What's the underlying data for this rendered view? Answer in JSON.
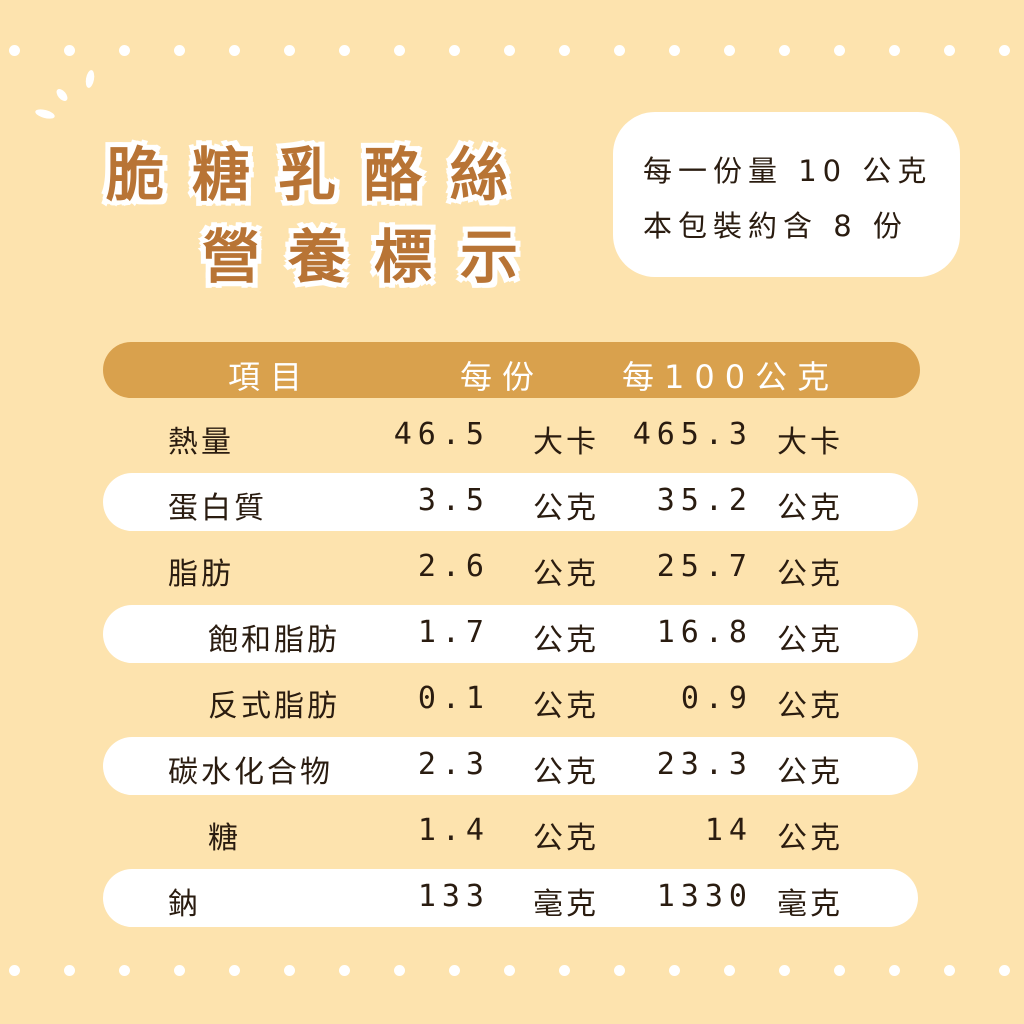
{
  "title": {
    "line1": "脆糖乳酪絲",
    "line2": "營養標示"
  },
  "serving_info": {
    "serving_size": "每一份量  10 公克",
    "servings_per_package": "本包裝約含 8 份"
  },
  "table": {
    "headers": {
      "item": "項目",
      "per_serving": "每份",
      "per_100g": "每100公克"
    },
    "rows": [
      {
        "name": "熱量",
        "indent": false,
        "per_serving": "46.5",
        "unit1": "大卡",
        "per_100g": "465.3",
        "unit2": "大卡"
      },
      {
        "name": "蛋白質",
        "indent": false,
        "per_serving": "3.5",
        "unit1": "公克",
        "per_100g": "35.2",
        "unit2": "公克"
      },
      {
        "name": "脂肪",
        "indent": false,
        "per_serving": "2.6",
        "unit1": "公克",
        "per_100g": "25.7",
        "unit2": "公克"
      },
      {
        "name": "飽和脂肪",
        "indent": true,
        "per_serving": "1.7",
        "unit1": "公克",
        "per_100g": "16.8",
        "unit2": "公克"
      },
      {
        "name": "反式脂肪",
        "indent": true,
        "per_serving": "0.1",
        "unit1": "公克",
        "per_100g": "0.9",
        "unit2": "公克"
      },
      {
        "name": "碳水化合物",
        "indent": false,
        "per_serving": "2.3",
        "unit1": "公克",
        "per_100g": "23.3",
        "unit2": "公克"
      },
      {
        "name": "糖",
        "indent": true,
        "per_serving": "1.4",
        "unit1": "公克",
        "per_100g": "14",
        "unit2": "公克"
      },
      {
        "name": "鈉",
        "indent": false,
        "per_serving": "133",
        "unit1": "毫克",
        "per_100g": "1330",
        "unit2": "毫克"
      }
    ]
  },
  "colors": {
    "background": "#fde3ae",
    "title": "#b87435",
    "header_bar": "#d9a14d",
    "row_highlight": "#ffffff"
  }
}
